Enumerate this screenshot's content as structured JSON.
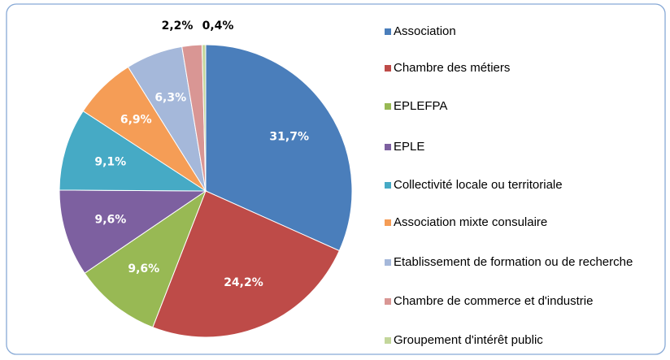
{
  "chart_data": {
    "type": "pie",
    "categories": [
      "Association",
      "Chambre des métiers",
      "EPLEFPA",
      "EPLE",
      "Collectivité locale ou territoriale",
      "Association mixte consulaire",
      "Etablissement de formation ou de recherche",
      "Chambre de commerce et d'industrie",
      "Groupement d'intérêt public"
    ],
    "values": [
      31.7,
      24.2,
      9.6,
      9.6,
      9.1,
      6.9,
      6.3,
      2.2,
      0.4
    ],
    "value_labels": [
      "31,7%",
      "24,2%",
      "9,6%",
      "9,6%",
      "9,1%",
      "6,9%",
      "6,3%",
      "2,2%",
      "0,4%"
    ],
    "colors": [
      "#4a7ebb",
      "#be4b48",
      "#98b954",
      "#7d60a0",
      "#46aac5",
      "#f59d56",
      "#a5b8da",
      "#d99694",
      "#c3d69b"
    ],
    "legend": "right"
  }
}
